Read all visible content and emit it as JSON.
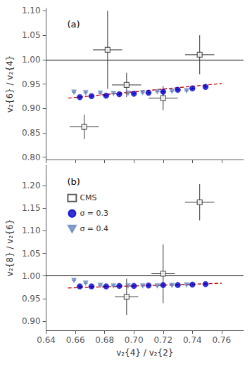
{
  "chart_data": [
    {
      "type": "scatter",
      "title": "(a)",
      "y_label": "v₂{6} / v₂{4}",
      "xlim": [
        0.64,
        0.775
      ],
      "xticks": [
        0.64,
        0.66,
        0.68,
        {
          "value": 0.7,
          "label": "0.70"
        },
        0.72,
        0.74,
        0.76
      ],
      "ylim": [
        0.795,
        1.105
      ],
      "yticks": [
        {
          "value": 0.8,
          "label": "0.80"
        },
        0.85,
        {
          "value": 0.9,
          "label": "0.90"
        },
        0.95,
        {
          "value": 1.0,
          "label": "1.00"
        },
        1.05,
        {
          "value": 1.1,
          "label": "1.10"
        }
      ],
      "grid": false,
      "tick_labels": "y",
      "reference_line": {
        "y": 1.0,
        "color": "#000000"
      },
      "series": [
        {
          "name": "σ = 0.4",
          "color": "#6688bb",
          "marker": "triangle_down",
          "x": [
            0.659,
            0.667,
            0.677,
            0.686,
            0.696,
            0.706,
            0.716,
            0.726,
            0.736
          ],
          "values": [
            0.933,
            0.932,
            0.931,
            0.93,
            0.931,
            0.932,
            0.934,
            0.935,
            0.936
          ],
          "xerr": [
            0.0015,
            0.0015,
            0.0015,
            0.0015,
            0.0015,
            0.0015,
            0.0015,
            0.0015,
            0.0015
          ],
          "yerr": [
            0.002,
            0.002,
            0.002,
            0.002,
            0.002,
            0.002,
            0.002,
            0.002,
            0.002
          ]
        },
        {
          "name": "σ = 0.3",
          "color": "#0000cc",
          "marker": "circle",
          "x": [
            0.663,
            0.671,
            0.681,
            0.69,
            0.7,
            0.71,
            0.72,
            0.73,
            0.74,
            0.749
          ],
          "values": [
            0.923,
            0.925,
            0.926,
            0.929,
            0.93,
            0.932,
            0.934,
            0.938,
            0.941,
            0.944
          ],
          "xerr": [
            0.0015,
            0.0015,
            0.0015,
            0.0015,
            0.0015,
            0.0015,
            0.0015,
            0.0015,
            0.0015,
            0.0015
          ],
          "yerr": [
            0.002,
            0.002,
            0.002,
            0.002,
            0.002,
            0.002,
            0.002,
            0.002,
            0.002,
            0.002
          ]
        },
        {
          "type": "line",
          "line_style": "dashed",
          "color": "#cc0000",
          "x": [
            0.655,
            0.76
          ],
          "values": [
            0.921,
            0.951
          ]
        },
        {
          "name": "CMS",
          "color": "#333333",
          "marker": "open_square",
          "x": [
            0.666,
            0.682,
            0.695,
            0.72,
            0.745
          ],
          "values": [
            0.862,
            1.02,
            0.948,
            0.921,
            1.01
          ],
          "xerr": [
            0.01,
            0.01,
            0.01,
            0.01,
            0.01
          ],
          "yerr": [
            0.025,
            0.08,
            0.025,
            0.025,
            0.04
          ]
        }
      ]
    },
    {
      "type": "scatter",
      "title": "(b)",
      "x_label": "v₂{4} / v₂{2}",
      "y_label": "v₂{8} / v₂{6}",
      "xlim": [
        0.64,
        0.775
      ],
      "xticks": [
        0.64,
        0.66,
        0.68,
        {
          "value": 0.7,
          "label": "0.70"
        },
        0.72,
        0.74,
        0.76
      ],
      "ylim": [
        0.88,
        1.245
      ],
      "yticks": [
        {
          "value": 0.9,
          "label": "0.90"
        },
        0.95,
        {
          "value": 1.0,
          "label": "1.00"
        },
        1.05,
        {
          "value": 1.1,
          "label": "1.10"
        },
        1.15,
        {
          "value": 1.2,
          "label": "1.20"
        }
      ],
      "grid": false,
      "legend": "upper left",
      "reference_line": {
        "y": 1.0,
        "color": "#000000"
      },
      "series": [
        {
          "name": "σ = 0.4",
          "color": "#6688bb",
          "marker": "triangle_down",
          "x": [
            0.659,
            0.667,
            0.677,
            0.686,
            0.696,
            0.706,
            0.716,
            0.726,
            0.736
          ],
          "values": [
            0.99,
            0.984,
            0.979,
            0.978,
            0.978,
            0.978,
            0.978,
            0.979,
            0.98
          ],
          "xerr": [
            0.0015,
            0.0015,
            0.0015,
            0.0015,
            0.0015,
            0.0015,
            0.0015,
            0.0015,
            0.0015
          ],
          "yerr": [
            0.002,
            0.002,
            0.002,
            0.002,
            0.002,
            0.002,
            0.002,
            0.002,
            0.002
          ]
        },
        {
          "name": "σ = 0.3",
          "color": "#0000cc",
          "marker": "circle",
          "x": [
            0.663,
            0.671,
            0.681,
            0.69,
            0.7,
            0.71,
            0.72,
            0.73,
            0.74,
            0.749
          ],
          "values": [
            0.977,
            0.977,
            0.977,
            0.978,
            0.978,
            0.979,
            0.98,
            0.98,
            0.981,
            0.982
          ],
          "xerr": [
            0.0015,
            0.0015,
            0.0015,
            0.0015,
            0.0015,
            0.0015,
            0.0015,
            0.0015,
            0.0015,
            0.0015
          ],
          "yerr": [
            0.0015,
            0.0015,
            0.0015,
            0.0015,
            0.0015,
            0.0015,
            0.0015,
            0.0015,
            0.0015,
            0.0015
          ]
        },
        {
          "type": "line",
          "line_style": "dashed",
          "color": "#cc0000",
          "x": [
            0.655,
            0.76
          ],
          "values": [
            0.9735,
            0.984
          ]
        },
        {
          "name": "CMS",
          "color": "#333333",
          "marker": "open_square",
          "x": [
            0.695,
            0.72,
            0.745
          ],
          "values": [
            0.954,
            1.005,
            1.163
          ],
          "xerr": [
            0.008,
            0.008,
            0.01
          ],
          "yerr": [
            0.04,
            0.065,
            0.04
          ]
        }
      ]
    }
  ]
}
